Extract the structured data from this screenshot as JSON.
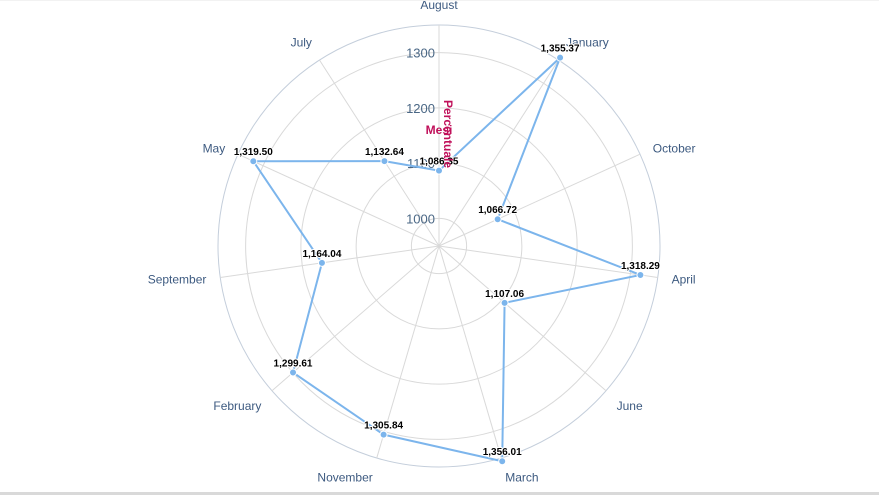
{
  "chart_data": {
    "type": "radar",
    "categories": [
      "August",
      "January",
      "October",
      "April",
      "June",
      "March",
      "November",
      "February",
      "September",
      "May",
      "July"
    ],
    "series": [
      {
        "values": [
          1086.35,
          1355.37,
          1066.72,
          1318.29,
          1107.06,
          1356.01,
          1305.84,
          1299.61,
          1164.04,
          1319.5,
          1132.64
        ]
      }
    ],
    "data_labels": [
      "1,086.35",
      "1,355.37",
      "1,066.72",
      "1,318.29",
      "1,107.06",
      "1,356.01",
      "1,305.84",
      "1,299.61",
      "1,164.04",
      "1,319.50",
      "1,132.64"
    ],
    "radial_ticks": [
      "1000",
      "1100",
      "1200",
      "1300"
    ],
    "r_range": [
      950,
      1350
    ],
    "xlabel": "Mesi",
    "ylabel": "Percentuale",
    "grid": true,
    "colors": {
      "series": "#7cb5ec",
      "grid": "#d9d9d9",
      "outer": "#c4cedb",
      "category_text": "#3d5a80",
      "axis_title": "#c0105a"
    }
  }
}
